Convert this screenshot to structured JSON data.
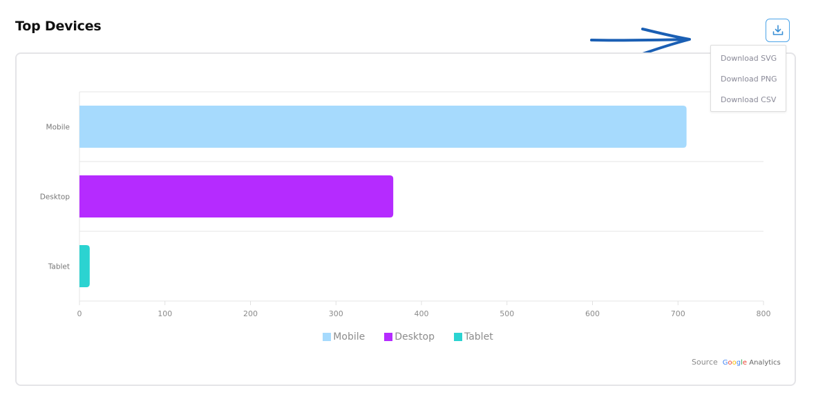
{
  "page": {
    "title": "Top Devices"
  },
  "toolbar": {
    "download_icon": "download-icon"
  },
  "menu": {
    "items": [
      "Download SVG",
      "Download PNG",
      "Download CSV"
    ]
  },
  "source": {
    "label": "Source",
    "provider_icon": "google-analytics-logo",
    "provider_text": "Google Analytics"
  },
  "chart_data": {
    "type": "bar",
    "orientation": "horizontal",
    "categories": [
      "Mobile",
      "Desktop",
      "Tablet"
    ],
    "values": [
      710,
      367,
      12
    ],
    "colors": [
      "#a6dafd",
      "#b52bff",
      "#2bd3d1"
    ],
    "xlim": [
      0,
      800
    ],
    "xticks": [
      0,
      100,
      200,
      300,
      400,
      500,
      600,
      700,
      800
    ],
    "legend": {
      "placement": "bottom-center",
      "items": [
        {
          "name": "Mobile",
          "color": "#a6dafd"
        },
        {
          "name": "Desktop",
          "color": "#b52bff"
        },
        {
          "name": "Tablet",
          "color": "#2bd3d1"
        }
      ]
    },
    "grid": true
  }
}
